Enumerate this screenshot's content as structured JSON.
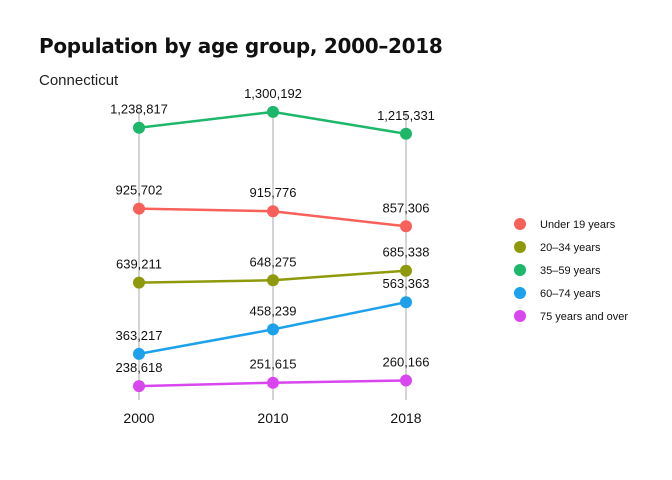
{
  "chart_data": {
    "type": "line",
    "title": "Population by age group, 2000–2018",
    "subtitle": "Connecticut",
    "x": [
      2000,
      2010,
      2018
    ],
    "x_tick_labels": [
      "2000",
      "2010",
      "2018"
    ],
    "ylim": [
      150000,
      1350000
    ],
    "grid": "vertical lines at each year",
    "legend_position": "right",
    "series": [
      {
        "name": "Under 19 years",
        "color": "#F8615A",
        "values": [
          925702,
          915776,
          857306
        ],
        "labels": [
          "925,702",
          "915,776",
          "857,306"
        ]
      },
      {
        "name": "20–34 years",
        "color": "#8E9A0B",
        "values": [
          639211,
          648275,
          685338
        ],
        "labels": [
          "639,211",
          "648,275",
          "685,338"
        ]
      },
      {
        "name": "35–59 years",
        "color": "#1DB76A",
        "values": [
          1238817,
          1300192,
          1215331
        ],
        "labels": [
          "1,238,817",
          "1,300,192",
          "1,215,331"
        ]
      },
      {
        "name": "60–74 years",
        "color": "#1DA1EC",
        "values": [
          363217,
          458239,
          563363
        ],
        "labels": [
          "363,217",
          "458,239",
          "563,363"
        ]
      },
      {
        "name": "75 years and over",
        "color": "#D946EF",
        "values": [
          238618,
          251615,
          260166
        ],
        "labels": [
          "238,618",
          "251,615",
          "260,166"
        ]
      }
    ]
  }
}
